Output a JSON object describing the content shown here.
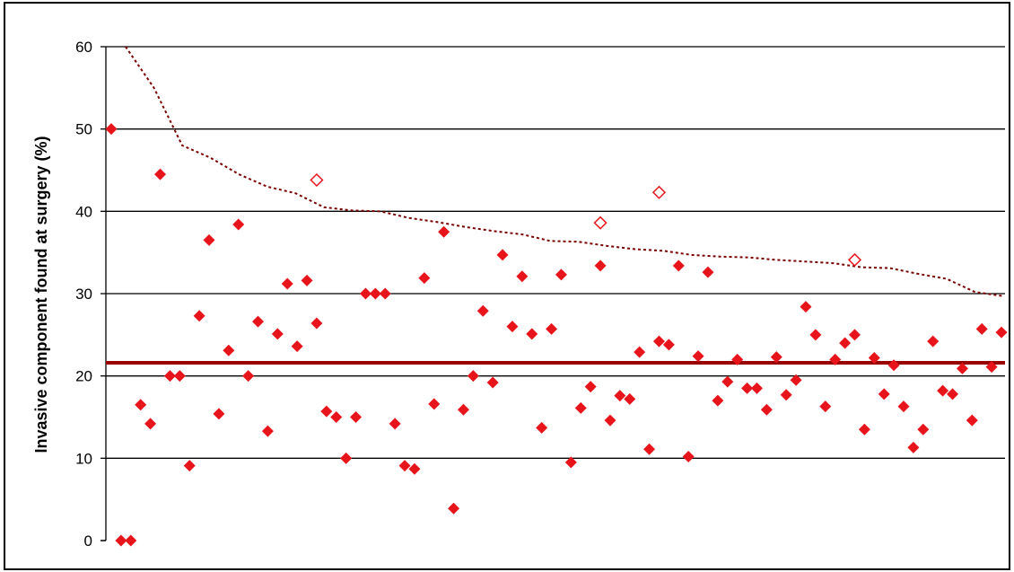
{
  "chart_data": {
    "type": "scatter",
    "title": "",
    "xlabel": "",
    "ylabel": "Invasive component found at surgery (%)",
    "ylim": [
      0,
      60
    ],
    "yticks": [
      0,
      10,
      20,
      30,
      40,
      50,
      60
    ],
    "grid": true,
    "legend": "none",
    "mean_line": 21.6,
    "colors": {
      "points": "#e8141b",
      "mean_line": "#990000",
      "threshold": "#7a0000",
      "grid": "#000000"
    },
    "series": [
      {
        "marker": "filled-diamond",
        "values": [
          50.0,
          0.0,
          0.0,
          16.5,
          14.2,
          44.5,
          20.0,
          20.0,
          9.1,
          27.3,
          36.5,
          15.4,
          23.1,
          38.4,
          20.0,
          26.6,
          13.3,
          25.1,
          31.2,
          23.6,
          31.6,
          26.4,
          15.7,
          15.0,
          10.0,
          15.0,
          30.0,
          30.0,
          30.0,
          14.2,
          9.1,
          8.7,
          31.9,
          16.6,
          37.5,
          3.9,
          15.9,
          20.0,
          27.9,
          19.2,
          34.7,
          26.0,
          32.1,
          25.1,
          13.7,
          25.7,
          32.3,
          9.5,
          16.1,
          18.7,
          33.4,
          14.6,
          17.6,
          17.2,
          22.9,
          11.1,
          24.2,
          23.8,
          33.4,
          10.2,
          22.4,
          32.6,
          17.0,
          19.3,
          22.0,
          18.5,
          18.5,
          15.9,
          22.3,
          17.7,
          19.5,
          28.4,
          25.0,
          16.3,
          22.0,
          24.0,
          25.0,
          13.5,
          22.2,
          17.8,
          21.3,
          16.3,
          11.3,
          13.5,
          24.2,
          18.2,
          17.8,
          20.9,
          14.6,
          25.7,
          21.1,
          25.3
        ]
      },
      {
        "marker": "open-diamond",
        "points": [
          [
            21,
            43.8
          ],
          [
            50,
            38.6
          ],
          [
            56,
            42.3
          ],
          [
            76,
            34.1
          ]
        ]
      },
      {
        "marker": "dotted-line",
        "values": [
          60.0,
          55.0,
          48.0,
          46.5,
          44.5,
          43.0,
          42.2,
          40.5,
          40.1,
          40.0,
          39.2,
          38.7,
          38.1,
          37.6,
          37.2,
          36.4,
          36.3,
          35.8,
          35.4,
          35.2,
          34.7,
          34.5,
          34.4,
          34.1,
          33.9,
          33.7,
          33.2,
          33.1,
          32.4,
          31.8,
          30.2,
          29.7
        ]
      }
    ]
  }
}
